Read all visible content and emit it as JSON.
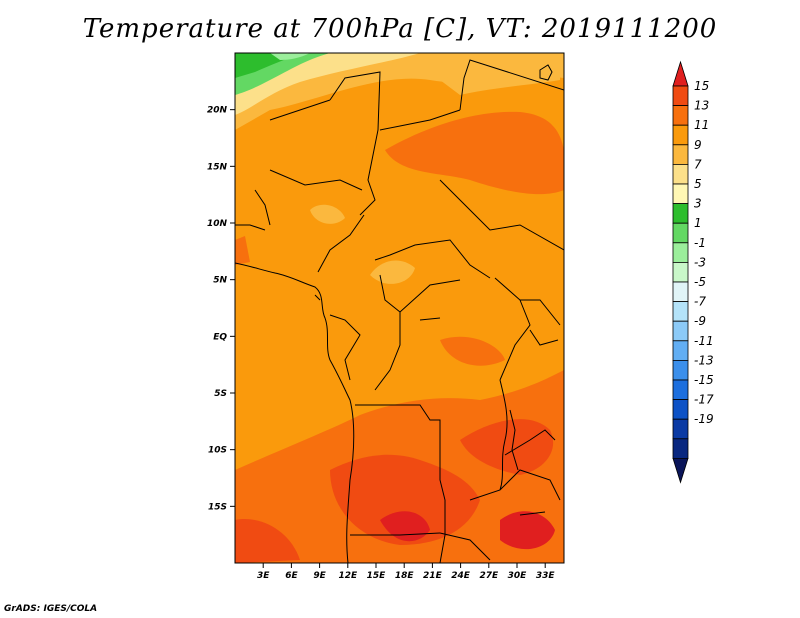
{
  "title": "Temperature at 700hPa [C], VT: 2019111200",
  "credit": "GrADS: IGES/COLA",
  "map": {
    "lon_range": [
      0,
      35
    ],
    "lat_range": [
      -20,
      25
    ],
    "x_ticks": [
      "3E",
      "6E",
      "9E",
      "12E",
      "15E",
      "18E",
      "21E",
      "24E",
      "27E",
      "30E",
      "33E"
    ],
    "y_ticks": [
      "20N",
      "15N",
      "10N",
      "5N",
      "EQ",
      "5S",
      "10S",
      "15S"
    ]
  },
  "colorbar": {
    "labels": [
      "15",
      "13",
      "11",
      "9",
      "7",
      "5",
      "3",
      "1",
      "-1",
      "-3",
      "-5",
      "-7",
      "-9",
      "-11",
      "-13",
      "-15",
      "-17",
      "-19"
    ],
    "colors": [
      "#e01f1f",
      "#f04b12",
      "#f7700e",
      "#fa9a0c",
      "#fbb83e",
      "#fce08a",
      "#fff7b4",
      "#2dbd2d",
      "#63d863",
      "#9bee9b",
      "#c9f7c9",
      "#e1f4f7",
      "#b4e3f9",
      "#8ccaf7",
      "#62aef3",
      "#3b8feb",
      "#1d6fde",
      "#0d52c6",
      "#0a3aa4",
      "#082780",
      "#0a1559"
    ]
  }
}
